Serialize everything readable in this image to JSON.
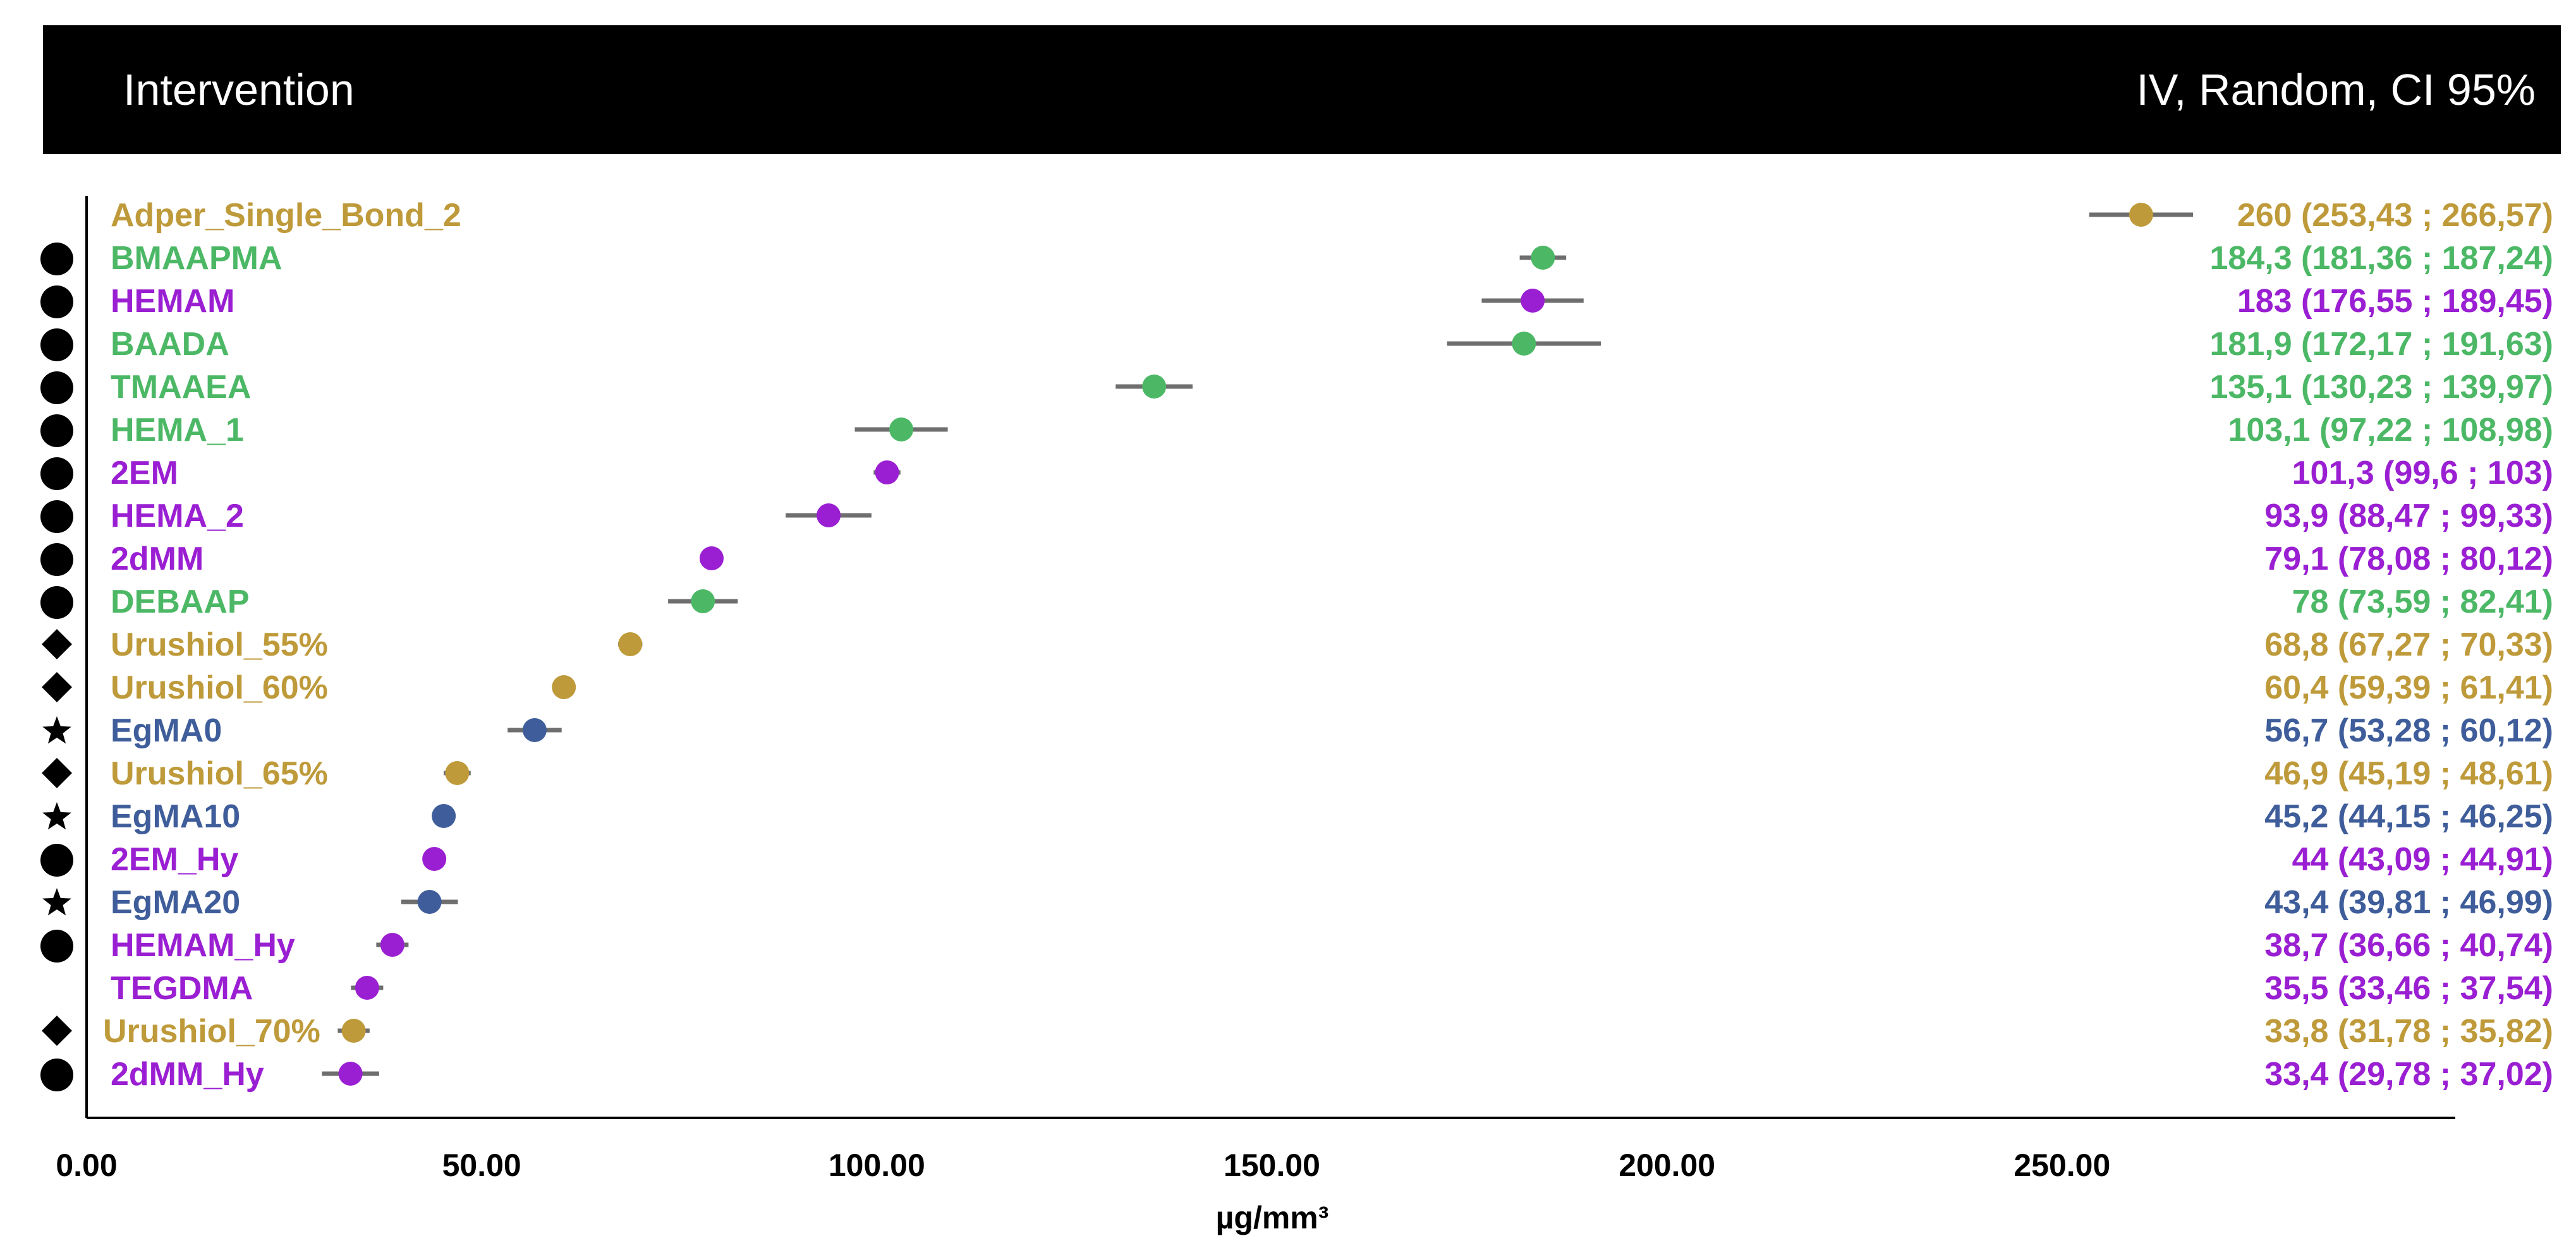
{
  "header": {
    "left_label": "Intervention",
    "right_label": "IV, Random, CI 95%"
  },
  "colors": {
    "gold": "#BE9A3A",
    "green": "#4CB866",
    "purple": "#9A1FD2",
    "navy": "#3E5D9A",
    "ci_line": "#6E6E6E"
  },
  "chart_data": {
    "type": "scatter",
    "subtype": "forest-plot",
    "xlabel": "µg/mm³",
    "xlim": [
      0,
      300
    ],
    "x_ticks": [
      0,
      50,
      100,
      150,
      200,
      250
    ],
    "x_tick_labels": [
      "0.00",
      "50.00",
      "100.00",
      "150.00",
      "200.00",
      "250.00"
    ],
    "grid": false,
    "rows": [
      {
        "label": "Adper_Single_Bond_2",
        "value": 260,
        "lower": 253.43,
        "upper": 266.57,
        "text": "260 (253,43 ; 266,57)",
        "color": "gold",
        "marker": "none"
      },
      {
        "label": "BMAAPMA",
        "value": 184.3,
        "lower": 181.36,
        "upper": 187.24,
        "text": "184,3 (181,36 ; 187,24)",
        "color": "green",
        "marker": "circle"
      },
      {
        "label": "HEMAM",
        "value": 183,
        "lower": 176.55,
        "upper": 189.45,
        "text": "183 (176,55 ; 189,45)",
        "color": "purple",
        "marker": "circle"
      },
      {
        "label": "BAADA",
        "value": 181.9,
        "lower": 172.17,
        "upper": 191.63,
        "text": "181,9 (172,17 ; 191,63)",
        "color": "green",
        "marker": "circle"
      },
      {
        "label": "TMAAEA",
        "value": 135.1,
        "lower": 130.23,
        "upper": 139.97,
        "text": "135,1 (130,23 ; 139,97)",
        "color": "green",
        "marker": "circle"
      },
      {
        "label": "HEMA_1",
        "value": 103.1,
        "lower": 97.22,
        "upper": 108.98,
        "text": "103,1 (97,22 ; 108,98)",
        "color": "green",
        "marker": "circle"
      },
      {
        "label": "2EM",
        "value": 101.3,
        "lower": 99.6,
        "upper": 103,
        "text": "101,3 (99,6 ; 103)",
        "color": "purple",
        "marker": "circle"
      },
      {
        "label": "HEMA_2",
        "value": 93.9,
        "lower": 88.47,
        "upper": 99.33,
        "text": "93,9 (88,47 ; 99,33)",
        "color": "purple",
        "marker": "circle"
      },
      {
        "label": "2dMM",
        "value": 79.1,
        "lower": 78.08,
        "upper": 80.12,
        "text": "79,1 (78,08 ; 80,12)",
        "color": "purple",
        "marker": "circle"
      },
      {
        "label": "DEBAAP",
        "value": 78,
        "lower": 73.59,
        "upper": 82.41,
        "text": "78 (73,59 ; 82,41)",
        "color": "green",
        "marker": "circle"
      },
      {
        "label": "Urushiol_55%",
        "value": 68.8,
        "lower": 67.27,
        "upper": 70.33,
        "text": "68,8 (67,27 ; 70,33)",
        "color": "gold",
        "marker": "diamond"
      },
      {
        "label": "Urushiol_60%",
        "value": 60.4,
        "lower": 59.39,
        "upper": 61.41,
        "text": "60,4 (59,39 ; 61,41)",
        "color": "gold",
        "marker": "diamond"
      },
      {
        "label": "EgMA0",
        "value": 56.7,
        "lower": 53.28,
        "upper": 60.12,
        "text": "56,7 (53,28 ; 60,12)",
        "color": "navy",
        "marker": "star"
      },
      {
        "label": "Urushiol_65%",
        "value": 46.9,
        "lower": 45.19,
        "upper": 48.61,
        "text": "46,9 (45,19 ; 48,61)",
        "color": "gold",
        "marker": "diamond"
      },
      {
        "label": "EgMA10",
        "value": 45.2,
        "lower": 44.15,
        "upper": 46.25,
        "text": "45,2 (44,15 ; 46,25)",
        "color": "navy",
        "marker": "star"
      },
      {
        "label": "2EM_Hy",
        "value": 44,
        "lower": 43.09,
        "upper": 44.91,
        "text": "44 (43,09 ; 44,91)",
        "color": "purple",
        "marker": "circle"
      },
      {
        "label": "EgMA20",
        "value": 43.4,
        "lower": 39.81,
        "upper": 46.99,
        "text": "43,4 (39,81 ; 46,99)",
        "color": "navy",
        "marker": "star"
      },
      {
        "label": "HEMAM_Hy",
        "value": 38.7,
        "lower": 36.66,
        "upper": 40.74,
        "text": "38,7 (36,66 ; 40,74)",
        "color": "purple",
        "marker": "circle"
      },
      {
        "label": "TEGDMA",
        "value": 35.5,
        "lower": 33.46,
        "upper": 37.54,
        "text": "35,5 (33,46 ; 37,54)",
        "color": "purple",
        "marker": "none"
      },
      {
        "label": "Urushiol_70%",
        "value": 33.8,
        "lower": 31.78,
        "upper": 35.82,
        "text": "33,8 (31,78 ; 35,82)",
        "color": "gold",
        "marker": "diamond"
      },
      {
        "label": "2dMM_Hy",
        "value": 33.4,
        "lower": 29.78,
        "upper": 37.02,
        "text": "33,4 (29,78 ; 37,02)",
        "color": "purple",
        "marker": "circle"
      }
    ]
  }
}
